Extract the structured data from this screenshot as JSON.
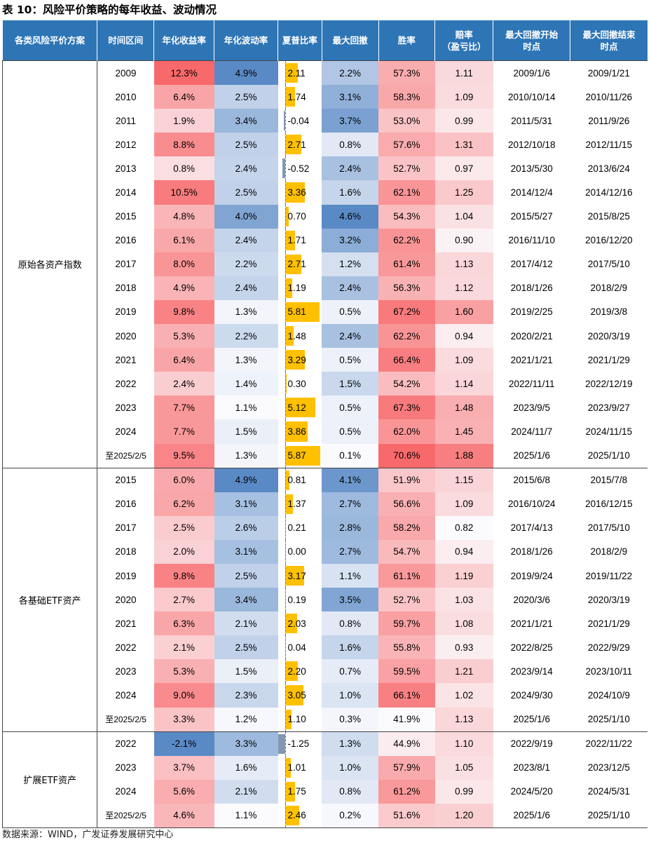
{
  "title": "表 10：风险平价策略的每年收益、波动情况",
  "source": "数据来源：WIND，广发证券发展研究中心",
  "colors": {
    "header_bg": "#2e75b6",
    "high_red": "#f8696b",
    "low_blue": "#5a8ac6",
    "sharpe_bar": "#ffc000",
    "sharpe_neg_bar": "#8497b0"
  },
  "headers": [
    "各类风险平价方案",
    "时间区间",
    "年化收益率",
    "年化波动率",
    "夏普比率",
    "最大回撤",
    "胜率",
    "赔率\n（盈亏比）",
    "最大回撤开始\n时点",
    "最大回撤结束\n时点"
  ],
  "groups": [
    {
      "name": "原始各资产指数",
      "rows": [
        {
          "year": "2009",
          "ret": "12.3%",
          "vol": "4.9%",
          "sharpe": "2.11",
          "mdd": "2.2%",
          "win": "57.3%",
          "odds": "1.11",
          "start": "2009/1/6",
          "end": "2009/1/21"
        },
        {
          "year": "2010",
          "ret": "6.4%",
          "vol": "2.5%",
          "sharpe": "1.74",
          "mdd": "3.1%",
          "win": "58.3%",
          "odds": "1.09",
          "start": "2010/10/14",
          "end": "2010/11/26"
        },
        {
          "year": "2011",
          "ret": "1.9%",
          "vol": "3.4%",
          "sharpe": "-0.04",
          "mdd": "3.7%",
          "win": "53.0%",
          "odds": "0.99",
          "start": "2011/5/31",
          "end": "2011/9/26"
        },
        {
          "year": "2012",
          "ret": "8.8%",
          "vol": "2.5%",
          "sharpe": "2.71",
          "mdd": "0.8%",
          "win": "57.6%",
          "odds": "1.31",
          "start": "2012/10/18",
          "end": "2012/11/15"
        },
        {
          "year": "2013",
          "ret": "0.8%",
          "vol": "2.4%",
          "sharpe": "-0.52",
          "mdd": "2.4%",
          "win": "52.7%",
          "odds": "0.97",
          "start": "2013/5/30",
          "end": "2013/6/24"
        },
        {
          "year": "2014",
          "ret": "10.5%",
          "vol": "2.5%",
          "sharpe": "3.36",
          "mdd": "1.6%",
          "win": "62.1%",
          "odds": "1.25",
          "start": "2014/12/4",
          "end": "2014/12/16"
        },
        {
          "year": "2015",
          "ret": "4.8%",
          "vol": "4.0%",
          "sharpe": "0.70",
          "mdd": "4.6%",
          "win": "54.3%",
          "odds": "1.04",
          "start": "2015/5/27",
          "end": "2015/8/25"
        },
        {
          "year": "2016",
          "ret": "6.1%",
          "vol": "2.4%",
          "sharpe": "1.71",
          "mdd": "3.2%",
          "win": "62.2%",
          "odds": "0.90",
          "start": "2016/11/10",
          "end": "2016/12/20"
        },
        {
          "year": "2017",
          "ret": "8.0%",
          "vol": "2.2%",
          "sharpe": "2.71",
          "mdd": "1.2%",
          "win": "61.4%",
          "odds": "1.13",
          "start": "2017/4/12",
          "end": "2017/5/10"
        },
        {
          "year": "2018",
          "ret": "4.9%",
          "vol": "2.4%",
          "sharpe": "1.19",
          "mdd": "2.4%",
          "win": "56.3%",
          "odds": "1.12",
          "start": "2018/1/26",
          "end": "2018/2/9"
        },
        {
          "year": "2019",
          "ret": "9.8%",
          "vol": "1.3%",
          "sharpe": "5.81",
          "mdd": "0.5%",
          "win": "67.2%",
          "odds": "1.60",
          "start": "2019/2/25",
          "end": "2019/3/8"
        },
        {
          "year": "2020",
          "ret": "5.3%",
          "vol": "2.2%",
          "sharpe": "1.48",
          "mdd": "2.4%",
          "win": "62.2%",
          "odds": "0.94",
          "start": "2020/2/21",
          "end": "2020/3/19"
        },
        {
          "year": "2021",
          "ret": "6.4%",
          "vol": "1.3%",
          "sharpe": "3.29",
          "mdd": "0.5%",
          "win": "66.4%",
          "odds": "1.09",
          "start": "2021/1/21",
          "end": "2021/1/29"
        },
        {
          "year": "2022",
          "ret": "2.4%",
          "vol": "1.4%",
          "sharpe": "0.30",
          "mdd": "1.5%",
          "win": "54.2%",
          "odds": "1.14",
          "start": "2022/11/11",
          "end": "2022/12/19"
        },
        {
          "year": "2023",
          "ret": "7.7%",
          "vol": "1.1%",
          "sharpe": "5.12",
          "mdd": "0.5%",
          "win": "67.3%",
          "odds": "1.48",
          "start": "2023/9/5",
          "end": "2023/9/27"
        },
        {
          "year": "2024",
          "ret": "7.7%",
          "vol": "1.5%",
          "sharpe": "3.86",
          "mdd": "0.5%",
          "win": "62.0%",
          "odds": "1.45",
          "start": "2024/11/7",
          "end": "2024/11/15"
        },
        {
          "year": "至2025/2/5",
          "ret": "9.5%",
          "vol": "1.3%",
          "sharpe": "5.87",
          "mdd": "0.1%",
          "win": "70.6%",
          "odds": "1.88",
          "start": "2025/1/6",
          "end": "2025/1/10"
        }
      ]
    },
    {
      "name": "各基础ETF资产",
      "rows": [
        {
          "year": "2015",
          "ret": "6.0%",
          "vol": "4.9%",
          "sharpe": "0.81",
          "mdd": "4.1%",
          "win": "51.9%",
          "odds": "1.15",
          "start": "2015/6/8",
          "end": "2015/7/8"
        },
        {
          "year": "2016",
          "ret": "6.2%",
          "vol": "3.1%",
          "sharpe": "1.37",
          "mdd": "2.7%",
          "win": "56.6%",
          "odds": "1.09",
          "start": "2016/10/24",
          "end": "2016/12/15"
        },
        {
          "year": "2017",
          "ret": "2.5%",
          "vol": "2.6%",
          "sharpe": "0.21",
          "mdd": "2.8%",
          "win": "58.2%",
          "odds": "0.82",
          "start": "2017/4/13",
          "end": "2017/5/10"
        },
        {
          "year": "2018",
          "ret": "2.0%",
          "vol": "3.1%",
          "sharpe": "0.00",
          "mdd": "2.7%",
          "win": "54.7%",
          "odds": "0.94",
          "start": "2018/1/26",
          "end": "2018/2/9"
        },
        {
          "year": "2019",
          "ret": "9.8%",
          "vol": "2.5%",
          "sharpe": "3.17",
          "mdd": "1.1%",
          "win": "61.1%",
          "odds": "1.19",
          "start": "2019/9/24",
          "end": "2019/11/22"
        },
        {
          "year": "2020",
          "ret": "2.7%",
          "vol": "3.4%",
          "sharpe": "0.19",
          "mdd": "3.5%",
          "win": "52.7%",
          "odds": "1.03",
          "start": "2020/3/6",
          "end": "2020/3/19"
        },
        {
          "year": "2021",
          "ret": "6.3%",
          "vol": "2.1%",
          "sharpe": "2.03",
          "mdd": "0.8%",
          "win": "59.7%",
          "odds": "1.08",
          "start": "2021/1/21",
          "end": "2021/1/29"
        },
        {
          "year": "2022",
          "ret": "2.1%",
          "vol": "2.5%",
          "sharpe": "0.04",
          "mdd": "1.6%",
          "win": "55.8%",
          "odds": "0.93",
          "start": "2022/8/25",
          "end": "2022/9/29"
        },
        {
          "year": "2023",
          "ret": "5.3%",
          "vol": "1.5%",
          "sharpe": "2.20",
          "mdd": "0.7%",
          "win": "59.5%",
          "odds": "1.21",
          "start": "2023/9/14",
          "end": "2023/10/11"
        },
        {
          "year": "2024",
          "ret": "9.0%",
          "vol": "2.3%",
          "sharpe": "3.05",
          "mdd": "1.0%",
          "win": "66.1%",
          "odds": "1.02",
          "start": "2024/9/30",
          "end": "2024/10/9"
        },
        {
          "year": "至2025/2/5",
          "ret": "3.3%",
          "vol": "1.2%",
          "sharpe": "1.10",
          "mdd": "0.3%",
          "win": "41.9%",
          "odds": "1.13",
          "start": "2025/1/6",
          "end": "2025/1/10"
        }
      ]
    },
    {
      "name": "扩展ETF资产",
      "rows": [
        {
          "year": "2022",
          "ret": "-2.1%",
          "vol": "3.3%",
          "sharpe": "-1.25",
          "mdd": "1.3%",
          "win": "44.9%",
          "odds": "1.10",
          "start": "2022/9/19",
          "end": "2022/11/22"
        },
        {
          "year": "2023",
          "ret": "3.7%",
          "vol": "1.6%",
          "sharpe": "1.01",
          "mdd": "1.0%",
          "win": "57.9%",
          "odds": "1.05",
          "start": "2023/8/1",
          "end": "2023/12/5"
        },
        {
          "year": "2024",
          "ret": "5.6%",
          "vol": "2.1%",
          "sharpe": "1.75",
          "mdd": "0.8%",
          "win": "61.2%",
          "odds": "0.99",
          "start": "2024/5/20",
          "end": "2024/5/31"
        },
        {
          "year": "至2025/2/5",
          "ret": "4.6%",
          "vol": "1.1%",
          "sharpe": "2.46",
          "mdd": "0.2%",
          "win": "51.6%",
          "odds": "1.20",
          "start": "2025/1/6",
          "end": "2025/1/10"
        }
      ]
    }
  ]
}
